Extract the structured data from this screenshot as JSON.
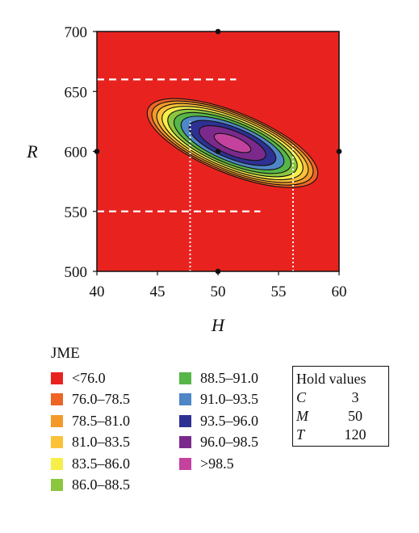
{
  "chart_data": {
    "type": "contour",
    "xlabel": "H",
    "ylabel": "R",
    "xlim": [
      40,
      60
    ],
    "ylim": [
      500,
      700
    ],
    "xticks": [
      "40",
      "45",
      "50",
      "55",
      "60"
    ],
    "yticks": [
      "500",
      "550",
      "600",
      "650",
      "700"
    ],
    "contour_levels": [
      76.0,
      78.5,
      81.0,
      83.5,
      86.0,
      88.5,
      91.0,
      93.5,
      96.0,
      98.5
    ],
    "optimum": {
      "H": 51.2,
      "R": 607,
      "JME": 99.6
    },
    "design_points": [
      {
        "H": 50,
        "R": 600
      },
      {
        "H": 50,
        "R": 700
      },
      {
        "H": 50,
        "R": 500
      },
      {
        "H": 40,
        "R": 600
      },
      {
        "H": 60,
        "R": 600
      }
    ],
    "reference_lines": [
      {
        "orientation": "horizontal",
        "style": "dashed",
        "R": 660,
        "H_from": 40,
        "H_to": 51.5
      },
      {
        "orientation": "horizontal",
        "style": "dashed",
        "R": 550,
        "H_from": 40,
        "H_to": 53.5
      },
      {
        "orientation": "vertical",
        "style": "dotted",
        "H": 47.7,
        "R_from": 500,
        "R_to": 625
      },
      {
        "orientation": "vertical",
        "style": "dotted",
        "H": 56.2,
        "R_from": 500,
        "R_to": 605
      }
    ]
  },
  "legend": {
    "title": "JME",
    "items": [
      {
        "label": "<76.0",
        "color": "#e8231f"
      },
      {
        "label": "76.0–78.5",
        "color": "#ee6425"
      },
      {
        "label": "78.5–81.0",
        "color": "#f49a2a"
      },
      {
        "label": "81.0–83.5",
        "color": "#fbc138"
      },
      {
        "label": "83.5–86.0",
        "color": "#f7ee4a"
      },
      {
        "label": "86.0–88.5",
        "color": "#8cc63f"
      },
      {
        "label": "88.5–91.0",
        "color": "#56b648"
      },
      {
        "label": "91.0–93.5",
        "color": "#4f86c6"
      },
      {
        "label": "93.5–96.0",
        "color": "#2e3192"
      },
      {
        "label": "96.0–98.5",
        "color": "#7b2a8c"
      },
      {
        "label": ">98.5",
        "color": "#c4429d"
      }
    ]
  },
  "hold_values": {
    "title": "Hold values",
    "rows": [
      {
        "name": "C",
        "value": "3"
      },
      {
        "name": "M",
        "value": "50"
      },
      {
        "name": "T",
        "value": "120"
      }
    ]
  }
}
